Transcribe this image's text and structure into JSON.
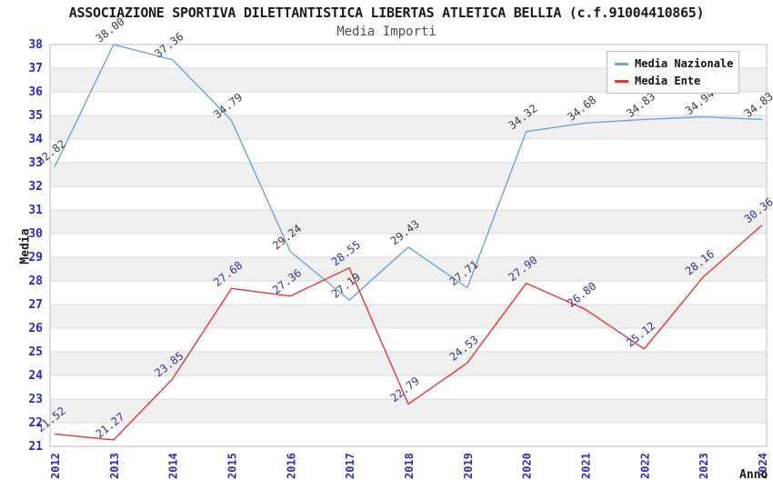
{
  "header": {
    "title": "ASSOCIAZIONE SPORTIVA DILETTANTISTICA LIBERTAS ATLETICA BELLIA (c.f.91004410865)",
    "subtitle": "Media Importi"
  },
  "legend": {
    "items": [
      {
        "label": "Media Nazionale",
        "color": "#6da3dc"
      },
      {
        "label": "Media Ente",
        "color": "#e93535"
      }
    ]
  },
  "axes": {
    "y_title": "Media",
    "x_title": "Anno"
  },
  "chart_data": {
    "type": "line",
    "title": "ASSOCIAZIONE SPORTIVA DILETTANTISTICA LIBERTAS ATLETICA BELLIA (c.f.91004410865)",
    "subtitle": "Media Importi",
    "xlabel": "Anno",
    "ylabel": "Media",
    "categories": [
      "2012",
      "2013",
      "2014",
      "2015",
      "2016",
      "2017",
      "2018",
      "2019",
      "2020",
      "2021",
      "2022",
      "2023",
      "2024"
    ],
    "series": [
      {
        "name": "Media Nazionale",
        "color": "#6da3dc",
        "label_color": "#3d3d3d",
        "values": [
          32.82,
          38.0,
          37.36,
          34.79,
          29.24,
          27.19,
          29.43,
          27.71,
          34.32,
          34.68,
          34.83,
          34.94,
          34.83
        ]
      },
      {
        "name": "Media Ente",
        "color": "#e93535",
        "label_color": "#333399",
        "values": [
          21.52,
          21.27,
          23.85,
          27.68,
          27.36,
          28.55,
          22.79,
          24.53,
          27.9,
          26.8,
          25.12,
          28.16,
          30.36
        ]
      }
    ],
    "ylim": [
      21,
      38
    ],
    "y_ticks": [
      21,
      22,
      23,
      24,
      25,
      26,
      27,
      28,
      29,
      30,
      31,
      32,
      33,
      34,
      35,
      36,
      37,
      38
    ],
    "grid": "horizontal",
    "band_fill": "#f0f0f0",
    "gridline_color": "#d9d9d9",
    "plot_border_color": "#bdbdbd",
    "tick_label_color": "#2a2ac8",
    "legend_position": "top-right",
    "value_labels": "2-decimals, rotated"
  }
}
